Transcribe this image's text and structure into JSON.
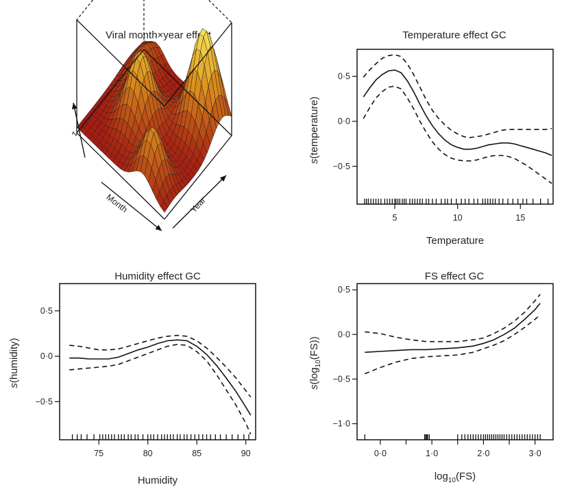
{
  "colors": {
    "surface_high": "#ffff66",
    "surface_mid": "#d98a1a",
    "surface_low": "#a01010",
    "line": "#111111"
  },
  "chart_data": [
    {
      "type": "surface3d",
      "title": "Viral month×year effect",
      "axes": {
        "x": "Month",
        "y": "Year",
        "z": "z"
      }
    },
    {
      "type": "line",
      "title": "Temperature effect GC",
      "xlabel": "Temperature",
      "ylabel": "s(temperature)",
      "xlim": [
        2,
        17.6
      ],
      "ylim": [
        -0.92,
        0.8
      ],
      "xticks": [
        5,
        10,
        15
      ],
      "xtick_labels": [
        "5",
        "10",
        "15"
      ],
      "yticks": [
        0.5,
        0,
        -0.5
      ],
      "ytick_labels": [
        "0·5",
        "0·0",
        "−0·5"
      ],
      "x": [
        2.5,
        3,
        3.5,
        4,
        4.5,
        5,
        5.5,
        6,
        6.5,
        7,
        7.5,
        8,
        8.5,
        9,
        9.5,
        10,
        10.5,
        11,
        11.5,
        12,
        12.5,
        13,
        13.5,
        14,
        14.5,
        15,
        15.5,
        16,
        16.5,
        17,
        17.5
      ],
      "series": [
        {
          "name": "",
          "style": "solid",
          "values": [
            0.27,
            0.37,
            0.46,
            0.52,
            0.56,
            0.57,
            0.54,
            0.45,
            0.33,
            0.19,
            0.06,
            -0.05,
            -0.14,
            -0.21,
            -0.26,
            -0.29,
            -0.31,
            -0.31,
            -0.3,
            -0.28,
            -0.26,
            -0.25,
            -0.24,
            -0.24,
            -0.25,
            -0.27,
            -0.29,
            -0.31,
            -0.33,
            -0.35,
            -0.38
          ]
        },
        {
          "name": "",
          "style": "dashed",
          "values": [
            0.49,
            0.57,
            0.64,
            0.7,
            0.73,
            0.74,
            0.72,
            0.64,
            0.52,
            0.38,
            0.24,
            0.12,
            0.03,
            -0.04,
            -0.1,
            -0.14,
            -0.17,
            -0.18,
            -0.17,
            -0.16,
            -0.14,
            -0.12,
            -0.1,
            -0.09,
            -0.09,
            -0.09,
            -0.09,
            -0.09,
            -0.09,
            -0.09,
            -0.08
          ]
        },
        {
          "name": "",
          "style": "dashed",
          "values": [
            0.03,
            0.15,
            0.26,
            0.33,
            0.38,
            0.39,
            0.36,
            0.26,
            0.14,
            0.0,
            -0.12,
            -0.23,
            -0.31,
            -0.37,
            -0.41,
            -0.43,
            -0.44,
            -0.44,
            -0.43,
            -0.41,
            -0.39,
            -0.38,
            -0.38,
            -0.39,
            -0.41,
            -0.45,
            -0.49,
            -0.54,
            -0.59,
            -0.64,
            -0.69
          ]
        }
      ],
      "rug": [
        2.6,
        2.75,
        2.9,
        3.1,
        3.3,
        3.5,
        3.7,
        3.9,
        4.2,
        4.4,
        4.6,
        4.8,
        5.0,
        5.1,
        5.25,
        5.4,
        5.6,
        5.75,
        5.9,
        6.2,
        6.4,
        6.6,
        6.8,
        7.0,
        7.2,
        7.5,
        7.7,
        8.0,
        8.3,
        8.7,
        9.0,
        9.2,
        9.5,
        9.9,
        10.3,
        10.6,
        10.9,
        11.3,
        11.6,
        12.0,
        12.2,
        12.4,
        12.6,
        12.8,
        13.0,
        13.3,
        13.6,
        14.0,
        14.4,
        14.8,
        15.2,
        15.5,
        16.0,
        16.6,
        17.2
      ]
    },
    {
      "type": "line",
      "title": "Humidity effect GC",
      "xlabel": "Humidity",
      "ylabel": "s(humidity)",
      "xlim": [
        71,
        91
      ],
      "ylim": [
        -0.92,
        0.8
      ],
      "xticks": [
        75,
        80,
        85,
        90
      ],
      "xtick_labels": [
        "75",
        "80",
        "85",
        "90"
      ],
      "yticks": [
        0.5,
        0,
        -0.5
      ],
      "ytick_labels": [
        "0·5",
        "0·0",
        "−0·5"
      ],
      "x": [
        72,
        73,
        74,
        75,
        76,
        77,
        78,
        79,
        80,
        81,
        82,
        83,
        84,
        85,
        86,
        87,
        88,
        89,
        90,
        90.5
      ],
      "series": [
        {
          "name": "",
          "style": "solid",
          "values": [
            -0.02,
            -0.02,
            -0.03,
            -0.03,
            -0.03,
            -0.01,
            0.03,
            0.07,
            0.1,
            0.14,
            0.17,
            0.18,
            0.17,
            0.11,
            0.02,
            -0.1,
            -0.24,
            -0.39,
            -0.56,
            -0.65
          ]
        },
        {
          "name": "",
          "style": "dashed",
          "values": [
            0.12,
            0.11,
            0.09,
            0.07,
            0.07,
            0.08,
            0.11,
            0.14,
            0.17,
            0.2,
            0.22,
            0.23,
            0.22,
            0.17,
            0.09,
            -0.01,
            -0.12,
            -0.24,
            -0.38,
            -0.45
          ]
        },
        {
          "name": "",
          "style": "dashed",
          "values": [
            -0.15,
            -0.14,
            -0.13,
            -0.12,
            -0.11,
            -0.09,
            -0.05,
            -0.01,
            0.03,
            0.07,
            0.11,
            0.13,
            0.12,
            0.05,
            -0.05,
            -0.2,
            -0.37,
            -0.54,
            -0.74,
            -0.86
          ]
        }
      ],
      "rug": [
        72.3,
        72.8,
        73.2,
        73.8,
        74.5,
        75.1,
        75.4,
        75.7,
        76.0,
        76.3,
        76.6,
        77.0,
        77.3,
        77.6,
        78.0,
        78.3,
        78.7,
        79.0,
        79.5,
        80.0,
        80.3,
        80.6,
        81.0,
        81.4,
        81.7,
        82.0,
        82.3,
        82.6,
        83.0,
        83.3,
        83.7,
        84.0,
        84.4,
        84.8,
        85.2,
        85.6,
        86.0,
        86.4,
        86.9,
        87.4,
        88.0,
        88.6,
        89.2,
        89.8,
        90.3
      ]
    },
    {
      "type": "line",
      "title": "FS effect GC",
      "xlabel": "log10(FS)",
      "ylabel": "s(log10(FS))",
      "xlim": [
        -0.45,
        3.35
      ],
      "ylim": [
        -1.18,
        0.57
      ],
      "xticks": [
        0,
        1,
        2,
        3
      ],
      "xtick_labels": [
        "0·0",
        "1·0",
        "2·0",
        "3·0"
      ],
      "minor_xticks": [
        0.5,
        1.5,
        2.5
      ],
      "yticks": [
        0.5,
        0,
        -0.5,
        -1
      ],
      "ytick_labels": [
        "0·5",
        "0·0",
        "−0·5",
        "−1·0"
      ],
      "x": [
        -0.3,
        0,
        0.3,
        0.6,
        0.9,
        1.2,
        1.5,
        1.8,
        2.0,
        2.2,
        2.4,
        2.6,
        2.8,
        3.0,
        3.1
      ],
      "series": [
        {
          "name": "",
          "style": "solid",
          "values": [
            -0.2,
            -0.19,
            -0.18,
            -0.17,
            -0.17,
            -0.16,
            -0.15,
            -0.13,
            -0.1,
            -0.06,
            0.0,
            0.07,
            0.17,
            0.28,
            0.35
          ]
        },
        {
          "name": "",
          "style": "dashed",
          "values": [
            0.03,
            0.01,
            -0.03,
            -0.06,
            -0.08,
            -0.08,
            -0.08,
            -0.06,
            -0.04,
            0.01,
            0.07,
            0.15,
            0.25,
            0.38,
            0.45
          ]
        },
        {
          "name": "",
          "style": "dashed",
          "values": [
            -0.44,
            -0.37,
            -0.31,
            -0.27,
            -0.25,
            -0.24,
            -0.23,
            -0.2,
            -0.16,
            -0.12,
            -0.07,
            0.0,
            0.08,
            0.17,
            0.22
          ]
        }
      ],
      "rug": [
        -0.3,
        0.86,
        0.88,
        0.9,
        0.92,
        0.95,
        1.5,
        1.58,
        1.64,
        1.7,
        1.75,
        1.8,
        1.85,
        1.9,
        1.95,
        2.0,
        2.04,
        2.08,
        2.12,
        2.16,
        2.2,
        2.24,
        2.28,
        2.32,
        2.36,
        2.4,
        2.45,
        2.5,
        2.55,
        2.6,
        2.65,
        2.7,
        2.75,
        2.8,
        2.85,
        2.9,
        2.95,
        3.0,
        3.05,
        3.1
      ]
    }
  ]
}
